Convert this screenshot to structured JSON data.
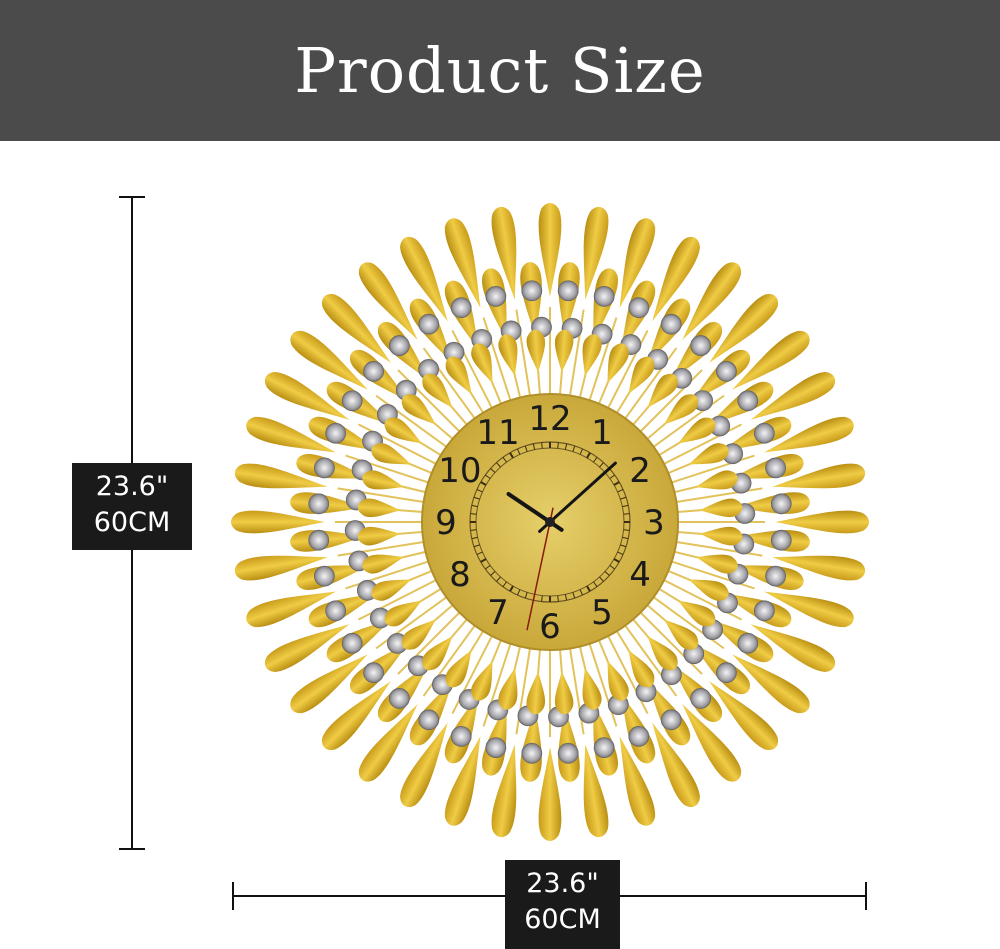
{
  "header": {
    "title": "Product Size"
  },
  "dimensions": {
    "height": {
      "inches": "23.6\"",
      "cm": "60CM"
    },
    "width": {
      "inches": "23.6\"",
      "cm": "60CM"
    }
  },
  "clock": {
    "numerals": [
      "12",
      "1",
      "2",
      "3",
      "4",
      "5",
      "6",
      "7",
      "8",
      "9",
      "10",
      "11"
    ],
    "time": {
      "hour": 10,
      "minute": 8,
      "second": 32
    },
    "colors": {
      "gold": "#d9b22a",
      "face": "#d4b94a",
      "gem": "#c8c8cc",
      "background": "#4b4b4b"
    }
  }
}
